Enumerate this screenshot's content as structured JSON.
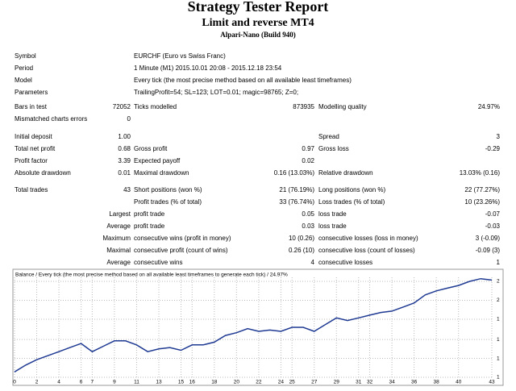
{
  "header": {
    "title": "Strategy Tester Report",
    "subtitle": "Limit and reverse MT4",
    "broker": "Alpari-Nano (Build 940)"
  },
  "sections": [
    [
      {
        "label": "Symbol",
        "label2": "EURCHF (Euro vs Swiss Franc)"
      },
      {
        "label": "Period",
        "label2": "1 Minute (M1) 2015.10.01 20:08 - 2015.12.18 23:54"
      },
      {
        "label": "Model",
        "label2": "Every tick (the most precise method based on all available least timeframes)"
      },
      {
        "label": "Parameters",
        "label2": "TrailingProfit=54; SL=123; LOT=0.01; magic=98765; Z=0;"
      }
    ],
    [
      {
        "label": "Bars in test",
        "value": "72052",
        "label2": "Ticks modelled",
        "value2": "873935",
        "label3": "Modelling quality",
        "value3": "24.97%"
      },
      {
        "label": "Mismatched charts errors",
        "value": "0"
      }
    ],
    [
      {
        "label": "Initial deposit",
        "value": "1.00",
        "label3": "Spread",
        "value3": "3"
      },
      {
        "label": "Total net profit",
        "value": "0.68",
        "label2": "Gross profit",
        "value2": "0.97",
        "label3": "Gross loss",
        "value3": "-0.29"
      },
      {
        "label": "Profit factor",
        "value": "3.39",
        "label2": "Expected payoff",
        "value2": "0.02"
      },
      {
        "label": "Absolute drawdown",
        "value": "0.01",
        "label2": "Maximal drawdown",
        "value2": "0.16 (13.03%)",
        "label3": "Relative drawdown",
        "value3": "13.03% (0.16)"
      }
    ],
    [
      {
        "label": "Total trades",
        "value": "43",
        "label2": "Short positions (won %)",
        "value2": "21 (76.19%)",
        "label3": "Long positions (won %)",
        "value3": "22 (77.27%)"
      },
      {
        "label2": "Profit trades (% of total)",
        "value2": "33 (76.74%)",
        "label3": "Loss trades (% of total)",
        "value3": "10 (23.26%)"
      },
      {
        "value": "Largest",
        "label2": "profit trade",
        "value2": "0.05",
        "label3": "loss trade",
        "value3": "-0.07"
      },
      {
        "value": "Average",
        "label2": "profit trade",
        "value2": "0.03",
        "label3": "loss trade",
        "value3": "-0.03"
      },
      {
        "value": "Maximum",
        "label2": "consecutive wins (profit in money)",
        "value2": "10 (0.26)",
        "label3": "consecutive losses (loss in money)",
        "value3": "3 (-0.09)"
      },
      {
        "value": "Maximal",
        "label2": "consecutive profit (count of wins)",
        "value2": "0.26 (10)",
        "label3": "consecutive loss (count of losses)",
        "value3": "-0.09 (3)"
      },
      {
        "value": "Average",
        "label2": "consecutive wins",
        "value2": "4",
        "label3": "consecutive losses",
        "value3": "1"
      }
    ]
  ],
  "chart_data": {
    "type": "line",
    "title": "Balance / Every tick (the most precise method based on all available least timeframes to generate each tick) / 24.97%",
    "color": "#1f3a93",
    "x": [
      0,
      1,
      2,
      3,
      4,
      5,
      6,
      7,
      8,
      9,
      10,
      11,
      12,
      13,
      14,
      15,
      16,
      17,
      18,
      19,
      20,
      21,
      22,
      23,
      24,
      25,
      26,
      27,
      28,
      29,
      30,
      31,
      32,
      33,
      34,
      35,
      36,
      37,
      38,
      39,
      40,
      41,
      42,
      43
    ],
    "values": [
      1.0,
      1.05,
      1.09,
      1.12,
      1.15,
      1.18,
      1.21,
      1.15,
      1.19,
      1.23,
      1.23,
      1.2,
      1.15,
      1.17,
      1.18,
      1.16,
      1.2,
      1.2,
      1.22,
      1.27,
      1.29,
      1.32,
      1.3,
      1.31,
      1.3,
      1.33,
      1.33,
      1.3,
      1.35,
      1.4,
      1.38,
      1.4,
      1.42,
      1.44,
      1.45,
      1.48,
      1.51,
      1.57,
      1.6,
      1.62,
      1.64,
      1.67,
      1.69,
      1.68
    ],
    "xlim": [
      0,
      43
    ],
    "xticks": [
      0,
      2,
      4,
      6,
      7,
      9,
      11,
      13,
      15,
      16,
      18,
      20,
      22,
      24,
      25,
      27,
      29,
      31,
      32,
      34,
      36,
      38,
      40,
      43
    ],
    "ylim": [
      0.96,
      1.7
    ],
    "yticks": [
      {
        "value": 0.96,
        "label": "1"
      },
      {
        "value": 1.1,
        "label": "1"
      },
      {
        "value": 1.24,
        "label": "1"
      },
      {
        "value": 1.39,
        "label": "1"
      },
      {
        "value": 1.53,
        "label": "2"
      },
      {
        "value": 1.67,
        "label": "2"
      }
    ],
    "grid": true
  }
}
